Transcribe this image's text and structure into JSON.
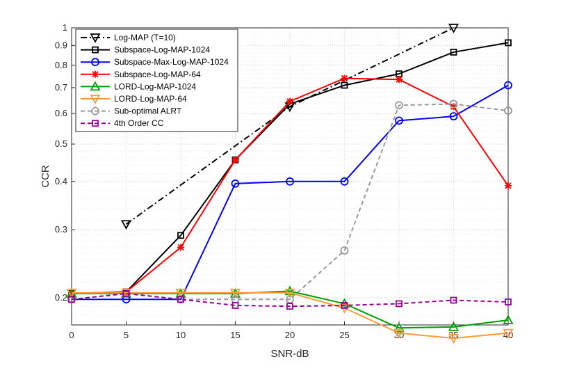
{
  "chart_data": {
    "type": "line",
    "xlabel": "SNR-dB",
    "ylabel": "CCR",
    "yscale": "log",
    "xlim": [
      0,
      40
    ],
    "ylim": [
      0.17,
      1.0
    ],
    "x": [
      0,
      5,
      10,
      15,
      20,
      25,
      30,
      35,
      40
    ],
    "x_ticks": [
      0,
      5,
      10,
      15,
      20,
      25,
      30,
      35,
      40
    ],
    "x_tick_labels": [
      "0",
      "5",
      "10",
      "15",
      "20",
      "25",
      "30",
      "35",
      "40"
    ],
    "y_ticks": [
      0.2,
      0.3,
      0.4,
      0.5,
      0.6,
      0.7,
      0.8,
      0.9,
      1.0
    ],
    "y_tick_labels": [
      "0.2",
      "0.3",
      "0.4",
      "0.5",
      "0.6",
      "0.7",
      "0.8",
      "0.9",
      "1"
    ],
    "grid": true,
    "legend_position": "top-left",
    "series": [
      {
        "name": "Log-MAP (T=10)",
        "color": "#000000",
        "dash": "dashdot",
        "marker": "triangle-down",
        "x": [
          5,
          20,
          35
        ],
        "values": [
          0.31,
          0.625,
          1.0
        ]
      },
      {
        "name": "Subspace-Log-MAP-1024",
        "color": "#000000",
        "dash": "solid",
        "marker": "square",
        "x": [
          0,
          5,
          10,
          15,
          20,
          25,
          30,
          35,
          40
        ],
        "values": [
          0.205,
          0.207,
          0.29,
          0.455,
          0.635,
          0.71,
          0.76,
          0.865,
          0.915
        ]
      },
      {
        "name": "Subspace-Max-Log-MAP-1024",
        "color": "#0000ff",
        "dash": "solid",
        "marker": "circle",
        "x": [
          0,
          5,
          10,
          15,
          20,
          25,
          30,
          35,
          40
        ],
        "values": [
          0.198,
          0.198,
          0.198,
          0.395,
          0.4,
          0.4,
          0.575,
          0.59,
          0.71
        ]
      },
      {
        "name": "Subspace-Log-MAP-64",
        "color": "#ff0000",
        "dash": "solid",
        "marker": "asterisk",
        "x": [
          0,
          5,
          10,
          15,
          20,
          25,
          30,
          35,
          40
        ],
        "values": [
          0.205,
          0.207,
          0.27,
          0.455,
          0.645,
          0.74,
          0.735,
          0.625,
          0.39
        ]
      },
      {
        "name": "LORD-Log-MAP-1024",
        "color": "#00a000",
        "dash": "solid",
        "marker": "triangle-up",
        "x": [
          0,
          5,
          10,
          15,
          20,
          25,
          30,
          35,
          40
        ],
        "values": [
          0.205,
          0.205,
          0.205,
          0.205,
          0.208,
          0.193,
          0.167,
          0.168,
          0.175
        ]
      },
      {
        "name": "LORD-Log-MAP-64",
        "color": "#ff9933",
        "dash": "solid",
        "marker": "triangle-down",
        "x": [
          0,
          5,
          10,
          15,
          20,
          25,
          30,
          35,
          40
        ],
        "values": [
          0.206,
          0.206,
          0.206,
          0.206,
          0.206,
          0.188,
          0.162,
          0.157,
          0.162
        ]
      },
      {
        "name": "Sub-optimal ALRT",
        "color": "#999999",
        "dash": "dashed",
        "marker": "circle",
        "x": [
          0,
          5,
          10,
          15,
          20,
          25,
          30,
          35,
          40
        ],
        "values": [
          0.198,
          0.205,
          0.198,
          0.198,
          0.198,
          0.265,
          0.63,
          0.635,
          0.61
        ]
      },
      {
        "name": "4th Order CC",
        "color": "#990099",
        "dash": "dashed",
        "marker": "square",
        "x": [
          0,
          5,
          10,
          15,
          20,
          25,
          30,
          35,
          40
        ],
        "values": [
          0.198,
          0.205,
          0.198,
          0.191,
          0.19,
          0.191,
          0.193,
          0.197,
          0.195
        ]
      }
    ]
  }
}
